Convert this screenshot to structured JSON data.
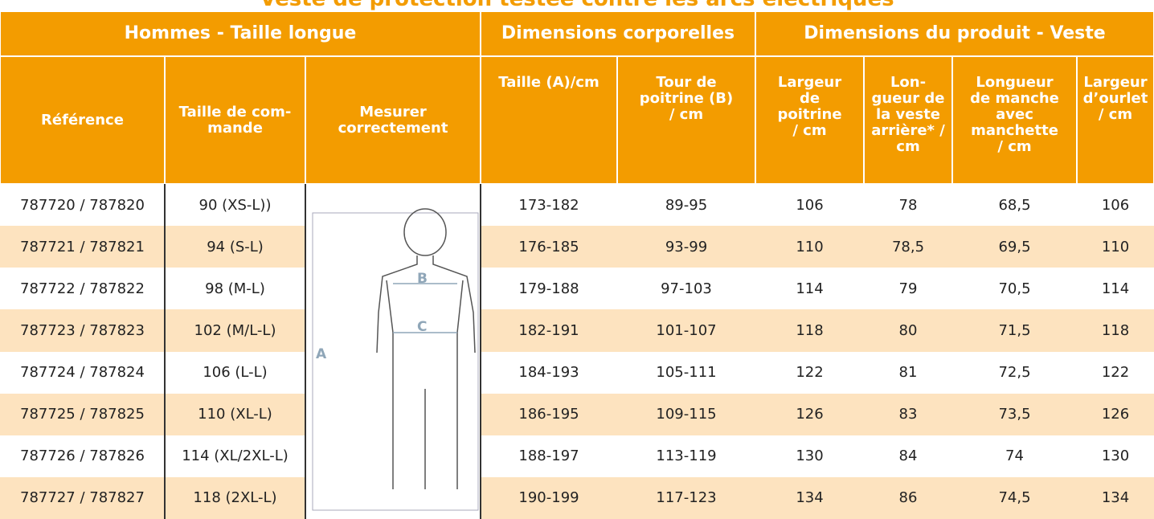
{
  "title": "Veste de protection testée contre les arcs électriques",
  "header_groups": [
    "Hommes - Taille longue",
    "Dimensions corporelles",
    "Dimensions du produit - Veste"
  ],
  "columns": [
    "Référence",
    "Taille de com-\nmande",
    "Mesurer\ncorrectement",
    "Taille (A)/cm",
    "Tour de\npoitrine (B)\n/ cm",
    "Largeur\nde\npoitrine\n/ cm",
    "Lon-\ngueur de\nla veste\narrière* /\ncm",
    "Longueur\nde manche\navec\nmanchette\n/ cm",
    "Largeur\nd’ourlet\n/ cm"
  ],
  "figure": {
    "labels": [
      "A",
      "B",
      "C"
    ]
  },
  "rows": [
    [
      "787720 / 787820",
      "90 (XS-L))",
      "173-182",
      "89-95",
      "106",
      "78",
      "68,5",
      "106"
    ],
    [
      "787721 / 787821",
      "94 (S-L)",
      "176-185",
      "93-99",
      "110",
      "78,5",
      "69,5",
      "110"
    ],
    [
      "787722 / 787822",
      "98 (M-L)",
      "179-188",
      "97-103",
      "114",
      "79",
      "70,5",
      "114"
    ],
    [
      "787723 / 787823",
      "102 (M/L-L)",
      "182-191",
      "101-107",
      "118",
      "80",
      "71,5",
      "118"
    ],
    [
      "787724 / 787824",
      "106 (L-L)",
      "184-193",
      "105-111",
      "122",
      "81",
      "72,5",
      "122"
    ],
    [
      "787725 / 787825",
      "110 (XL-L)",
      "186-195",
      "109-115",
      "126",
      "83",
      "73,5",
      "126"
    ],
    [
      "787726 / 787826",
      "114 (XL/2XL-L)",
      "188-197",
      "113-119",
      "130",
      "84",
      "74",
      "130"
    ],
    [
      "787727 / 787827",
      "118 (2XL-L)",
      "190-199",
      "117-123",
      "134",
      "86",
      "74,5",
      "134"
    ]
  ]
}
